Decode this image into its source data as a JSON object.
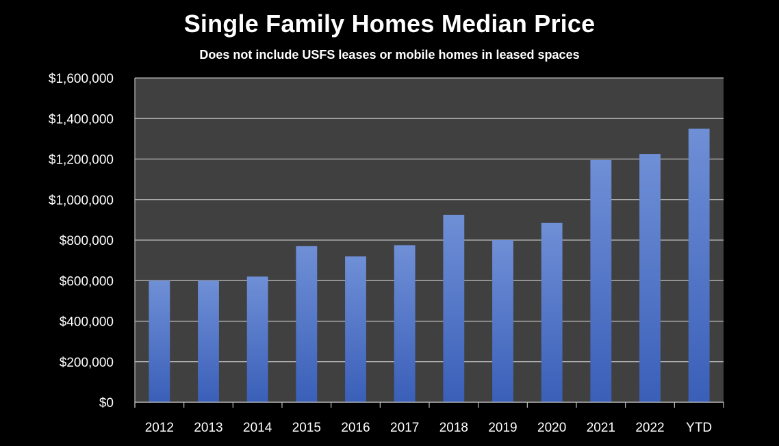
{
  "chart_data": {
    "type": "bar",
    "title": "Single Family Homes Median Price",
    "subtitle": "Does not include USFS leases or mobile homes in leased spaces",
    "categories": [
      "2012",
      "2013",
      "2014",
      "2015",
      "2016",
      "2017",
      "2018",
      "2019",
      "2020",
      "2021",
      "2022",
      "YTD"
    ],
    "values": [
      600000,
      600000,
      620000,
      770000,
      720000,
      775000,
      925000,
      800000,
      885000,
      1195000,
      1225000,
      1350000
    ],
    "ylim": [
      0,
      1600000
    ],
    "yticks": [
      "$0",
      "$200,000",
      "$400,000",
      "$600,000",
      "$800,000",
      "$1,000,000",
      "$1,200,000",
      "$1,400,000",
      "$1,600,000"
    ],
    "ytick_values": [
      0,
      200000,
      400000,
      600000,
      800000,
      1000000,
      1200000,
      1400000,
      1600000
    ],
    "xlabel": "",
    "ylabel": "",
    "grid": true,
    "legend": "none",
    "colors": {
      "background": "#000000",
      "plot_area": "#404040",
      "gridline": "#bfbfbf",
      "bar_top": "#6f8fd6",
      "bar_bottom": "#3a5fb8",
      "text": "#ffffff"
    }
  }
}
